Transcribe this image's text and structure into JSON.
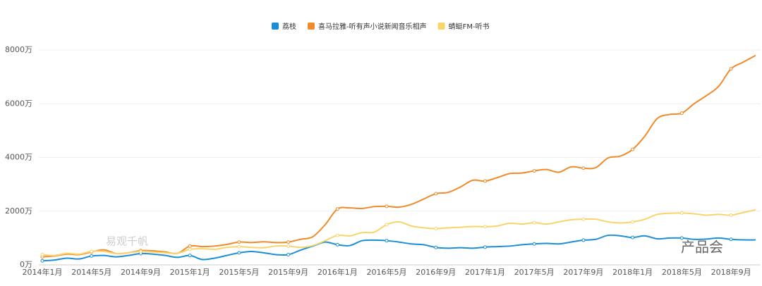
{
  "chart_data": {
    "type": "line",
    "categories": [
      "2014年1月",
      null,
      null,
      null,
      "2014年5月",
      null,
      null,
      null,
      "2014年9月",
      null,
      null,
      null,
      "2015年1月",
      null,
      null,
      null,
      "2015年5月",
      null,
      null,
      null,
      "2015年9月",
      null,
      null,
      null,
      "2016年1月",
      null,
      null,
      null,
      "2016年5月",
      null,
      null,
      null,
      "2016年9月",
      null,
      null,
      null,
      "2017年1月",
      null,
      null,
      null,
      "2017年5月",
      null,
      null,
      null,
      "2017年9月",
      null,
      null,
      null,
      "2018年1月",
      null,
      null,
      null,
      "2018年5月",
      null,
      null,
      null,
      "2018年9月",
      null,
      null
    ],
    "series": [
      {
        "name": "荔枝",
        "color": "#1a8fd8",
        "values": [
          150,
          180,
          250,
          220,
          330,
          350,
          300,
          350,
          420,
          400,
          350,
          280,
          350,
          200,
          250,
          350,
          450,
          500,
          450,
          380,
          380,
          550,
          700,
          850,
          750,
          720,
          900,
          920,
          900,
          850,
          780,
          750,
          650,
          620,
          640,
          620,
          660,
          680,
          700,
          750,
          780,
          800,
          780,
          850,
          920,
          950,
          1100,
          1080,
          1020,
          1080,
          970,
          1000,
          1000,
          950,
          960,
          1000,
          950,
          930,
          930
        ]
      },
      {
        "name": "喜马拉雅-听有声小说新闻音乐相声",
        "color": "#f08a2a",
        "values": [
          300,
          330,
          400,
          380,
          480,
          560,
          420,
          450,
          530,
          520,
          480,
          430,
          700,
          680,
          700,
          760,
          850,
          830,
          860,
          830,
          850,
          950,
          1050,
          1500,
          2080,
          2120,
          2100,
          2170,
          2180,
          2150,
          2250,
          2450,
          2650,
          2700,
          2900,
          3150,
          3120,
          3250,
          3400,
          3420,
          3500,
          3550,
          3450,
          3650,
          3600,
          3620,
          3980,
          4050,
          4300,
          4800,
          5450,
          5600,
          5650,
          6000,
          6300,
          6650,
          7300,
          7550,
          7800
        ]
      },
      {
        "name": "蜻蜓FM-听书",
        "color": "#f9d46b",
        "values": [
          380,
          350,
          430,
          400,
          500,
          500,
          420,
          450,
          500,
          480,
          450,
          430,
          580,
          600,
          580,
          650,
          680,
          650,
          640,
          700,
          700,
          650,
          720,
          900,
          1100,
          1080,
          1200,
          1220,
          1500,
          1600,
          1450,
          1380,
          1350,
          1380,
          1400,
          1430,
          1420,
          1450,
          1550,
          1520,
          1570,
          1520,
          1600,
          1680,
          1700,
          1700,
          1600,
          1560,
          1600,
          1700,
          1880,
          1920,
          1930,
          1900,
          1850,
          1880,
          1850,
          1950,
          2050
        ]
      }
    ],
    "ylim": [
      0,
      8000
    ],
    "yticks": [
      {
        "value": 0,
        "label": "0万"
      },
      {
        "value": 2000,
        "label": "2000万"
      },
      {
        "value": 4000,
        "label": "4000万"
      },
      {
        "value": 6000,
        "label": "6000万"
      },
      {
        "value": 8000,
        "label": "8000万"
      }
    ],
    "grid": true,
    "legend": "top",
    "annotations": [
      "易观千帆",
      "产品会"
    ]
  }
}
